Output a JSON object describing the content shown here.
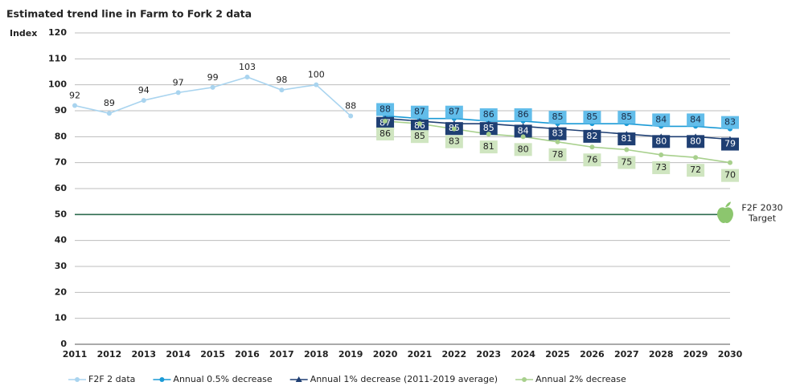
{
  "chart_data": {
    "type": "line",
    "title": "Estimated trend line in Farm to Fork 2 data",
    "y_label": "Index",
    "categories": [
      "2011",
      "2012",
      "2013",
      "2014",
      "2015",
      "2016",
      "2017",
      "2018",
      "2019",
      "2020",
      "2021",
      "2022",
      "2023",
      "2024",
      "2025",
      "2026",
      "2027",
      "2028",
      "2029",
      "2030"
    ],
    "ylim": [
      0,
      120
    ],
    "yticks": [
      0,
      10,
      20,
      30,
      40,
      50,
      60,
      70,
      80,
      90,
      100,
      110,
      120
    ],
    "grid": true,
    "series": [
      {
        "name": "F2F 2 data",
        "color": "#a9d4ef",
        "marker": "circle",
        "label_style": "plain",
        "values": [
          92,
          89,
          94,
          97,
          99,
          103,
          98,
          100,
          88,
          null,
          null,
          null,
          null,
          null,
          null,
          null,
          null,
          null,
          null,
          null
        ]
      },
      {
        "name": "Annual 0.5% decrease",
        "color": "#1a9ad6",
        "marker": "circle",
        "label_style": "box-above",
        "label_fill": "#62bdea",
        "label_text": "#1a2a44",
        "values": [
          null,
          null,
          null,
          null,
          null,
          null,
          null,
          null,
          null,
          88,
          87,
          87,
          86,
          86,
          85,
          85,
          85,
          84,
          84,
          83
        ]
      },
      {
        "name": "Annual 1% decrease (2011-2019 average)",
        "color": "#1f3f73",
        "marker": "triangle",
        "label_style": "box-on",
        "label_fill": "#1f3f73",
        "label_text": "#ffffff",
        "values": [
          null,
          null,
          null,
          null,
          null,
          null,
          null,
          null,
          null,
          87,
          86,
          85,
          85,
          84,
          83,
          82,
          81,
          80,
          80,
          79
        ]
      },
      {
        "name": "Annual 2% decrease",
        "color": "#a8d08d",
        "marker": "circle",
        "label_style": "box-below",
        "label_fill": "#cfe5c0",
        "label_text": "#222222",
        "values": [
          null,
          null,
          null,
          null,
          null,
          null,
          null,
          null,
          null,
          86,
          85,
          83,
          81,
          80,
          78,
          76,
          75,
          73,
          72,
          70
        ]
      }
    ],
    "target": {
      "value": 50,
      "color": "#2e6b4f",
      "text": [
        "F2F 2030",
        "Target"
      ]
    }
  }
}
